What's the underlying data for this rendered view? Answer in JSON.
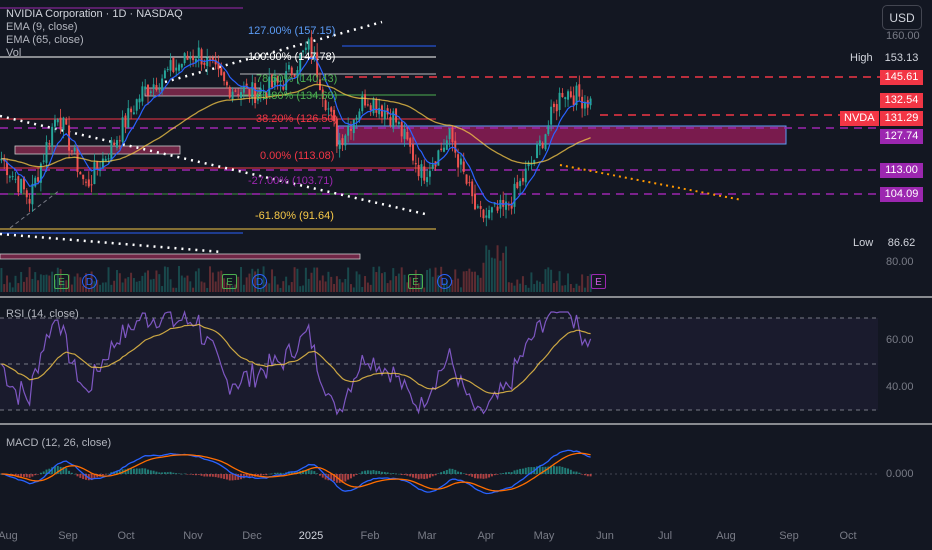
{
  "legend": {
    "title": "NVIDIA Corporation · 1D · NASDAQ",
    "ema9": "EMA (9, close)",
    "ema65": "EMA (65, close)",
    "vol": "Vol",
    "rsi": "RSI (14, close)",
    "macd": "MACD (12, 26, close)"
  },
  "currency_button": "USD",
  "price_scale": {
    "high_label": "High",
    "high_value": "153.13",
    "low_label": "Low",
    "low_value": "86.62",
    "tags": [
      "145.61",
      "132.54",
      "131.29",
      "127.74",
      "113.00",
      "104.09"
    ],
    "ticker_label": "NVDA",
    "tag_colors": {
      "red": "#f23645",
      "purple": "#9c27b0"
    },
    "axis_ticks": [
      "160.00",
      "80.00"
    ]
  },
  "rsi_scale": [
    "60.00",
    "40.00"
  ],
  "macd_scale": [
    "0.000"
  ],
  "x_axis": [
    "Aug",
    "Sep",
    "Oct",
    "Nov",
    "Dec",
    "2025",
    "Feb",
    "Mar",
    "Apr",
    "May",
    "Jun",
    "Jul",
    "Aug",
    "Sep",
    "Oct"
  ],
  "fib_levels": [
    {
      "label": "127.00% (157.15)",
      "color": "#5b9cf6"
    },
    {
      "label": "100.00% (147.78)",
      "color": "#ffffff"
    },
    {
      "label": "78.60% (140.43)",
      "color": "#4caf50"
    },
    {
      "label": "61.80% (134.68)",
      "color": "#4caf50"
    },
    {
      "label": "38.20% (126.50)",
      "color": "#f23645"
    },
    {
      "label": "0.00% (113.08)",
      "color": "#f23645"
    },
    {
      "label": "-27.00% (103.71)",
      "color": "#9c27b0"
    },
    {
      "label": "-61.80% (91.64)",
      "color": "#f7c948"
    }
  ],
  "events": [
    "E",
    "D",
    "E",
    "D",
    "E",
    "D",
    "E"
  ],
  "chart_data": {
    "type": "candlestick",
    "symbol": "NVDA",
    "timeframe": "1D",
    "exchange": "NASDAQ",
    "ylim": [
      80,
      160
    ],
    "last_price": 131.29,
    "horizontal_levels": [
      145.61,
      132.54,
      127.74,
      113.0,
      104.09
    ],
    "high": 153.13,
    "low": 86.62,
    "price_path": [
      {
        "x": "Jul 25",
        "y": 113
      },
      {
        "x": "Aug 5",
        "y": 100
      },
      {
        "x": "Aug 20",
        "y": 128
      },
      {
        "x": "Sep 6",
        "y": 104
      },
      {
        "x": "Sep 20",
        "y": 118
      },
      {
        "x": "Oct 10",
        "y": 134
      },
      {
        "x": "Oct 25",
        "y": 141
      },
      {
        "x": "Nov 10",
        "y": 147
      },
      {
        "x": "Nov 25",
        "y": 136
      },
      {
        "x": "Dec 10",
        "y": 134
      },
      {
        "x": "Dec 30",
        "y": 137
      },
      {
        "x": "Jan 7",
        "y": 149
      },
      {
        "x": "Jan 27",
        "y": 118
      },
      {
        "x": "Feb 10",
        "y": 133
      },
      {
        "x": "Feb 25",
        "y": 126
      },
      {
        "x": "Mar 10",
        "y": 108
      },
      {
        "x": "Mar 25",
        "y": 120
      },
      {
        "x": "Apr 7",
        "y": 94
      },
      {
        "x": "Apr 21",
        "y": 97
      },
      {
        "x": "May 5",
        "y": 113
      },
      {
        "x": "May 15",
        "y": 135
      },
      {
        "x": "May 23",
        "y": 131
      }
    ]
  }
}
